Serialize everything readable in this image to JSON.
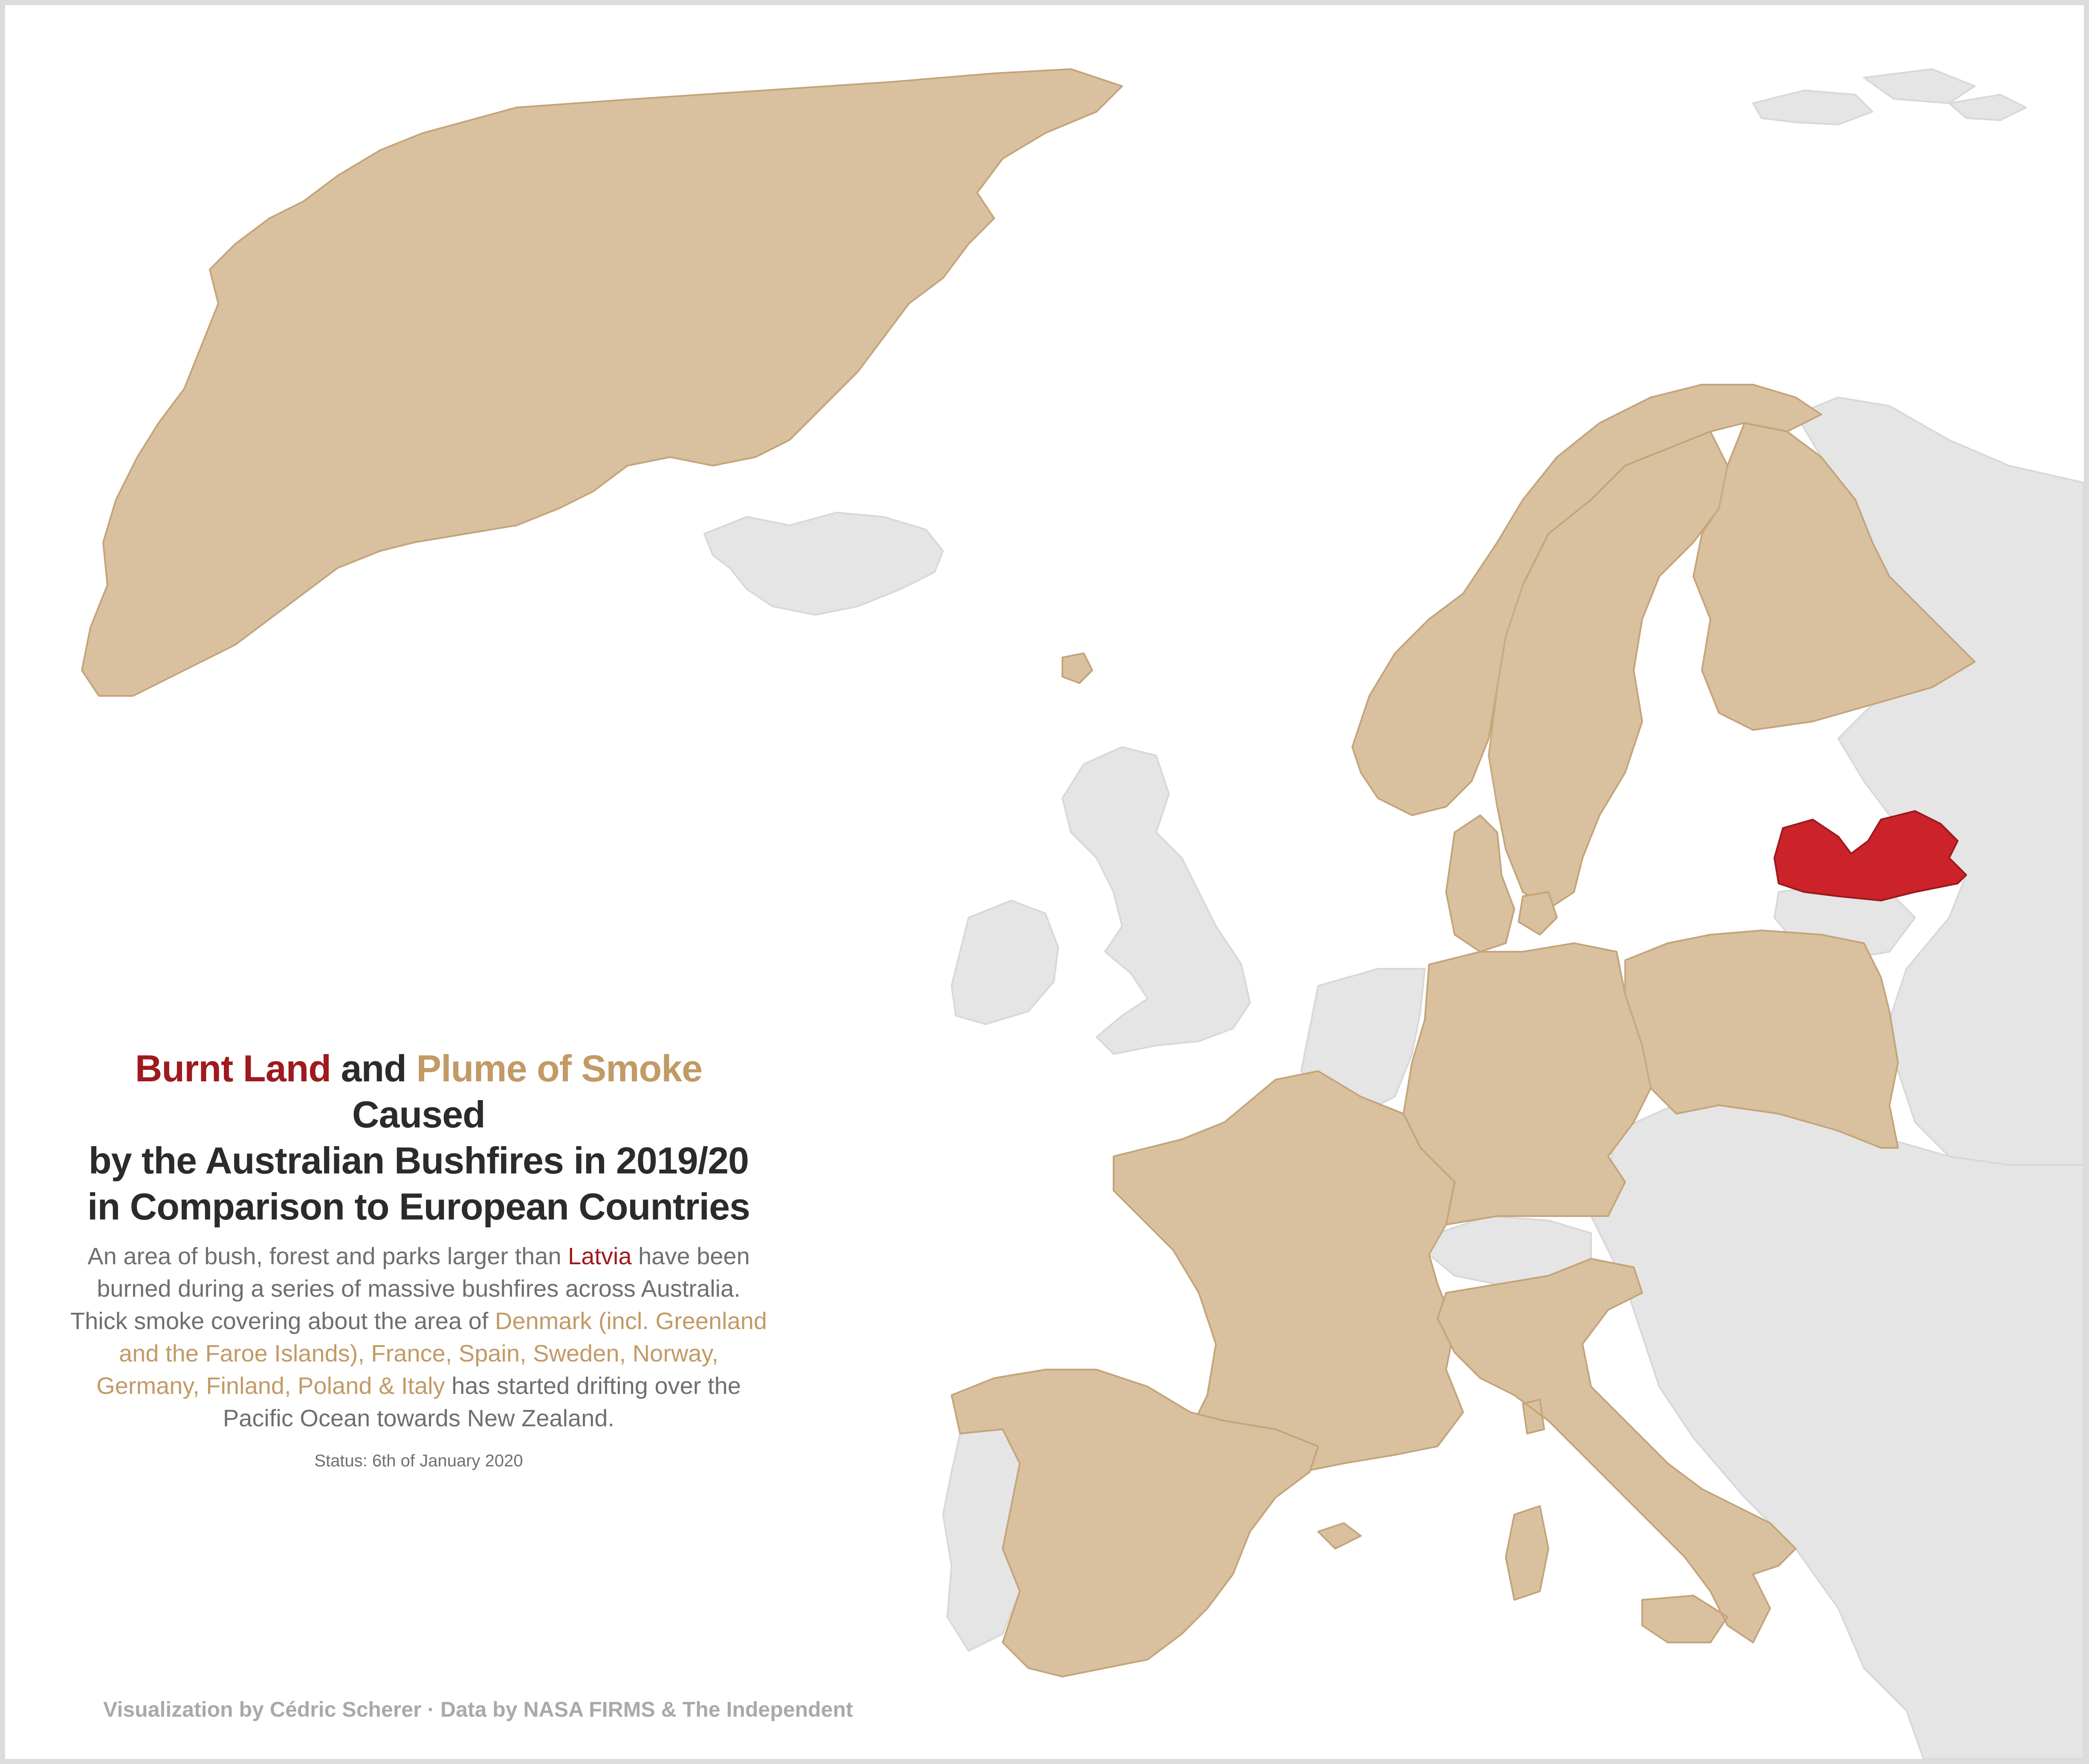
{
  "title": {
    "part1": "Burnt Land",
    "part2": " and ",
    "part3": "Plume of Smoke",
    "part4": " Caused",
    "line2": "by the Australian Bushfires in 2019/20",
    "line3": "in Comparison to European Countries"
  },
  "description": {
    "before": "An area of bush, forest and parks larger than ",
    "burnt_country": "Latvia",
    "middle": " have been burned during a series of massive bushfires across Australia. Thick smoke covering about the area of ",
    "smoke_countries": "Denmark (incl. Greenland and the Faroe Islands), France, Spain, Sweden, Norway, Germany, Finland, Poland & Italy",
    "after": " has started drifting over the Pacific Ocean towards New Zealand."
  },
  "status": "Status: 6th of January 2020",
  "caption": "Visualization by Cédric Scherer · Data by NASA FIRMS & The Independent",
  "colors": {
    "burnt": "#cc2229",
    "smoke": "#d9c09f",
    "other": "#e5e5e5",
    "title_text": "#2b2b2b",
    "body_text": "#6f6f6f",
    "caption_text": "#a9a9a9"
  },
  "map": {
    "burnt_land": [
      "Latvia"
    ],
    "smoke_plume": [
      "Greenland",
      "Faroe Islands",
      "Denmark",
      "France",
      "Spain",
      "Sweden",
      "Norway",
      "Germany",
      "Finland",
      "Poland",
      "Italy"
    ],
    "other_countries": [
      "Iceland",
      "Svalbard",
      "United Kingdom",
      "Ireland",
      "Netherlands",
      "Belgium",
      "Switzerland",
      "Austria",
      "Czechia",
      "Portugal",
      "Estonia",
      "Lithuania",
      "Belarus",
      "Russia",
      "Balkans",
      "Greece"
    ]
  }
}
